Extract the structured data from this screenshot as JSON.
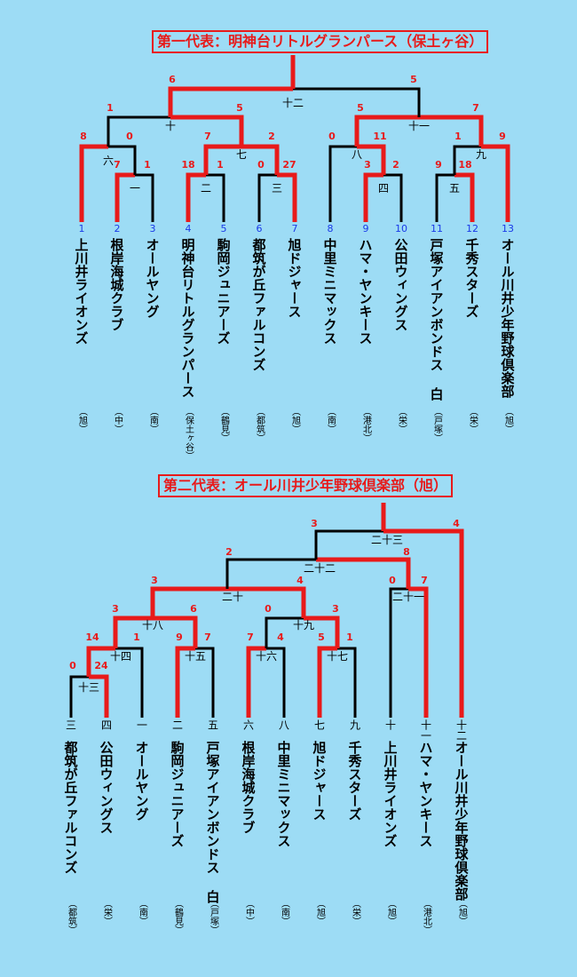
{
  "bracket1": {
    "title": "第一代表：明神台リトルグランパース（保土ヶ谷）",
    "teams": [
      {
        "seed": "1",
        "name": "上川井ライオンズ",
        "city": "（旭）"
      },
      {
        "seed": "2",
        "name": "根岸海城クラブ",
        "city": "（中）"
      },
      {
        "seed": "3",
        "name": "オールヤング",
        "city": "（南）"
      },
      {
        "seed": "4",
        "name": "明神台リトルグランパース",
        "city": "（保土ヶ谷）"
      },
      {
        "seed": "5",
        "name": "駒岡ジュニアーズ",
        "city": "（鶴見）"
      },
      {
        "seed": "6",
        "name": "都筑が丘ファルコンズ",
        "city": "（都筑）"
      },
      {
        "seed": "7",
        "name": "旭ドジャース",
        "city": "（旭）"
      },
      {
        "seed": "8",
        "name": "中里ミニマックス",
        "city": "（南）"
      },
      {
        "seed": "9",
        "name": "ハマ・ヤンキース",
        "city": "（港北）"
      },
      {
        "seed": "10",
        "name": "公田ウィングス",
        "city": "（栄）"
      },
      {
        "seed": "11",
        "name": "戸塚アイアンボンドス 白",
        "city": "（戸塚）"
      },
      {
        "seed": "12",
        "name": "千秀スターズ",
        "city": "（栄）"
      },
      {
        "seed": "13",
        "name": "オール川井少年野球倶楽部",
        "city": "（旭）"
      }
    ],
    "games": [
      "一",
      "二",
      "三",
      "四",
      "五",
      "六",
      "七",
      "八",
      "九",
      "十",
      "十一",
      "十二"
    ],
    "scores": [
      "6",
      "5",
      "1",
      "5",
      "5",
      "7",
      "8",
      "0",
      "7",
      "2",
      "0",
      "11",
      "1",
      "9",
      "7",
      "1",
      "18",
      "1",
      "0",
      "27",
      "3",
      "2",
      "9",
      "18"
    ]
  },
  "bracket2": {
    "title": "第二代表：オール川井少年野球倶楽部（旭）",
    "teams": [
      {
        "slot": "三",
        "name": "都筑が丘ファルコンズ",
        "city": "（都筑）"
      },
      {
        "slot": "四",
        "name": "公田ウィングス",
        "city": "（栄）"
      },
      {
        "slot": "一",
        "name": "オールヤング",
        "city": "（南）"
      },
      {
        "slot": "二",
        "name": "駒岡ジュニアーズ",
        "city": "（鶴見）"
      },
      {
        "slot": "五",
        "name": "戸塚アイアンボンドス 白",
        "city": "（戸塚）"
      },
      {
        "slot": "六",
        "name": "根岸海城クラブ",
        "city": "（中）"
      },
      {
        "slot": "八",
        "name": "中里ミニマックス",
        "city": "（南）"
      },
      {
        "slot": "七",
        "name": "旭ドジャース",
        "city": "（旭）"
      },
      {
        "slot": "九",
        "name": "千秀スターズ",
        "city": "（栄）"
      },
      {
        "slot": "十",
        "name": "上川井ライオンズ",
        "city": "（旭）"
      },
      {
        "slot": "十一",
        "name": "ハマ・ヤンキース",
        "city": "（港北）"
      },
      {
        "slot": "十二",
        "name": "オール川井少年野球倶楽部",
        "city": "（旭）"
      }
    ],
    "games": [
      "十三",
      "十四",
      "十五",
      "十六",
      "十七",
      "十八",
      "十九",
      "二十",
      "二十一",
      "二十二",
      "二十三"
    ],
    "scores": [
      "3",
      "4",
      "2",
      "8",
      "3",
      "4",
      "0",
      "7",
      "3",
      "6",
      "0",
      "3",
      "14",
      "1",
      "9",
      "7",
      "7",
      "4",
      "5",
      "1",
      "0",
      "24"
    ]
  },
  "colors": {
    "background": "#9ddcf5",
    "winner": "#e81a1a",
    "loser": "#000000",
    "seed": "#1a3ae8"
  }
}
